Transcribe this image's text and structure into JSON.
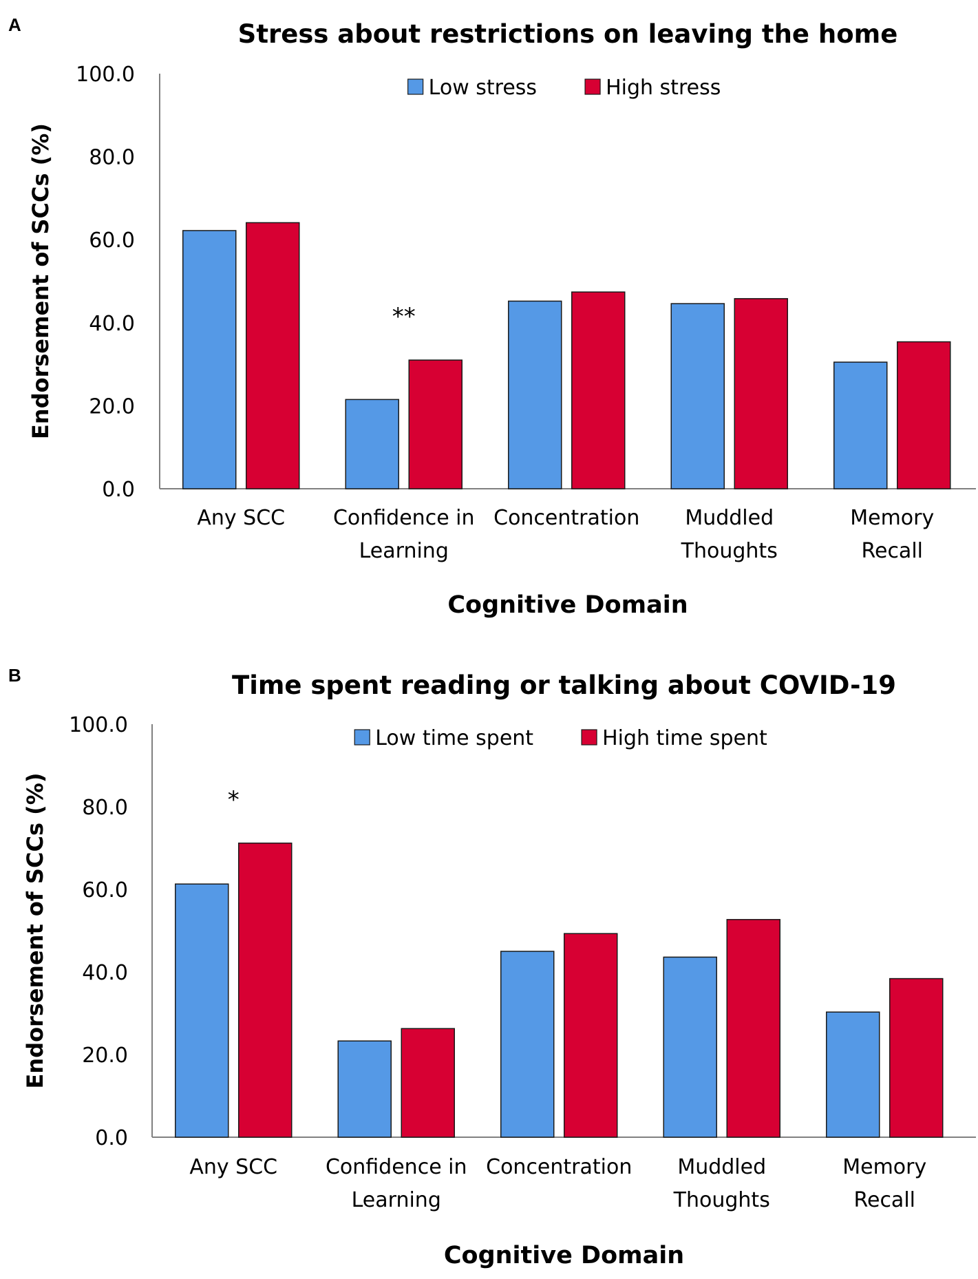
{
  "chart_data": [
    {
      "type": "bar",
      "panel_label": "A",
      "title": "Stress about restrictions on leaving the home",
      "xlabel": "Cognitive Domain",
      "ylabel": "Endorsement of SCCs (%)",
      "ylim": [
        0,
        100
      ],
      "yticks": [
        "0.0",
        "20.0",
        "40.0",
        "60.0",
        "80.0",
        "100.0"
      ],
      "grid": false,
      "legend_position": "top-center",
      "categories": [
        [
          "Any SCC"
        ],
        [
          "Confidence in",
          "Learning"
        ],
        [
          "Concentration"
        ],
        [
          "Muddled",
          "Thoughts"
        ],
        [
          "Memory",
          "Recall"
        ]
      ],
      "series": [
        {
          "name": "Low stress",
          "color": "#5599e6",
          "values": [
            62.2,
            21.5,
            45.2,
            44.6,
            30.5
          ]
        },
        {
          "name": "High stress",
          "color": "#d70033",
          "values": [
            64.1,
            31.0,
            47.4,
            45.8,
            35.4
          ]
        }
      ],
      "annotations": [
        {
          "text": "**",
          "category_index": 1
        }
      ]
    },
    {
      "type": "bar",
      "panel_label": "B",
      "title": "Time spent reading or talking about COVID-19",
      "xlabel": "Cognitive Domain",
      "ylabel": "Endorsement of SCCs (%)",
      "ylim": [
        0,
        100
      ],
      "yticks": [
        "0.0",
        "20.0",
        "40.0",
        "60.0",
        "80.0",
        "100.0"
      ],
      "grid": false,
      "legend_position": "top-center",
      "categories": [
        [
          "Any SCC"
        ],
        [
          "Confidence in",
          "Learning"
        ],
        [
          "Concentration"
        ],
        [
          "Muddled",
          "Thoughts"
        ],
        [
          "Memory",
          "Recall"
        ]
      ],
      "series": [
        {
          "name": "Low time spent",
          "color": "#5599e6",
          "values": [
            61.3,
            23.3,
            45.0,
            43.6,
            30.3
          ]
        },
        {
          "name": "High time spent",
          "color": "#d70033",
          "values": [
            71.2,
            26.3,
            49.3,
            52.7,
            38.4
          ]
        }
      ],
      "annotations": [
        {
          "text": "*",
          "category_index": 0
        }
      ]
    }
  ]
}
